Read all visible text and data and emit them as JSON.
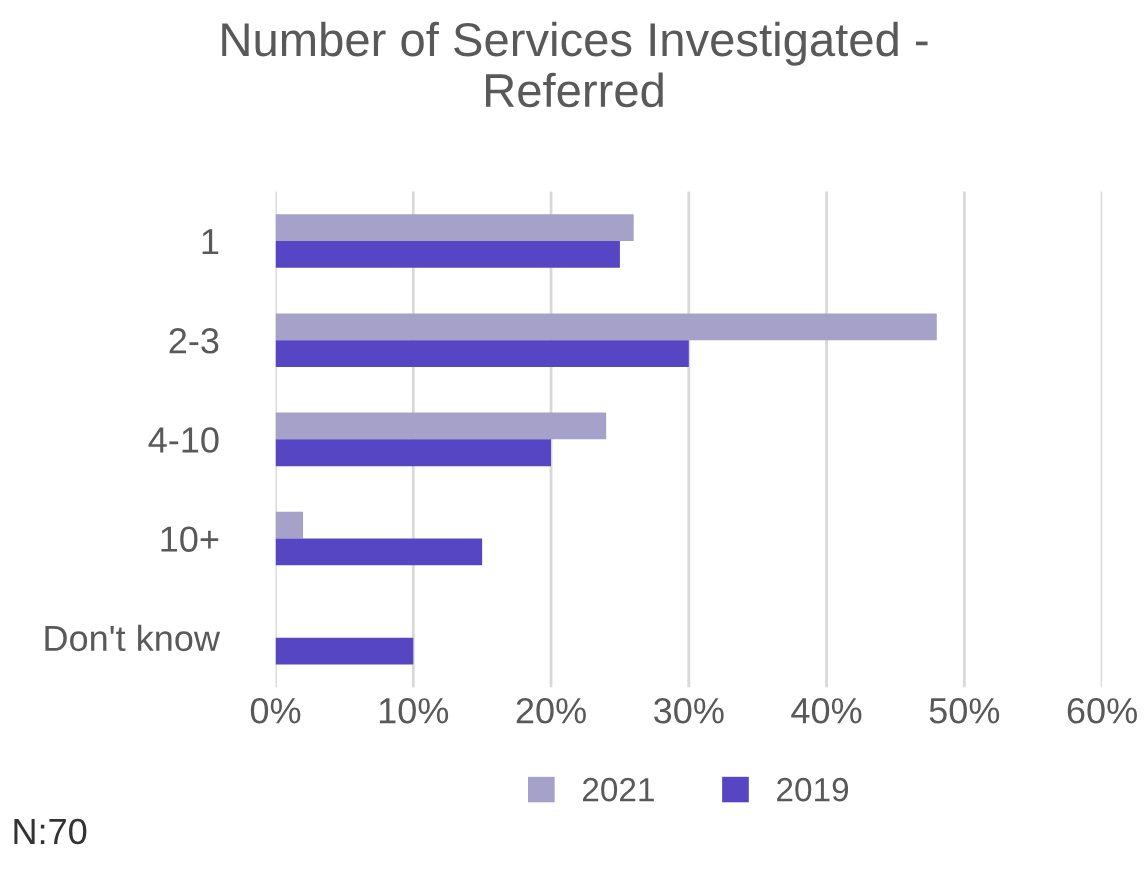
{
  "chart_data": {
    "type": "bar",
    "orientation": "horizontal",
    "title": "Number of Services Investigated -\nReferred",
    "categories": [
      "1",
      "2-3",
      "4-10",
      "10+",
      "Don't know"
    ],
    "series": [
      {
        "name": "2021",
        "color": "#a5a1c8",
        "values": [
          26,
          48,
          24,
          2,
          0
        ]
      },
      {
        "name": "2019",
        "color": "#5646c4",
        "values": [
          25,
          30,
          20,
          15,
          10
        ]
      }
    ],
    "xlim": [
      0,
      60
    ],
    "xticks": [
      {
        "value": 0,
        "label": "0%"
      },
      {
        "value": 10,
        "label": "10%"
      },
      {
        "value": 20,
        "label": "20%"
      },
      {
        "value": 30,
        "label": "30%"
      },
      {
        "value": 40,
        "label": "40%"
      },
      {
        "value": 50,
        "label": "50%"
      },
      {
        "value": 60,
        "label": "60%"
      }
    ],
    "grid": "x",
    "legend": "bottom",
    "annotations": [
      "N:70"
    ]
  }
}
